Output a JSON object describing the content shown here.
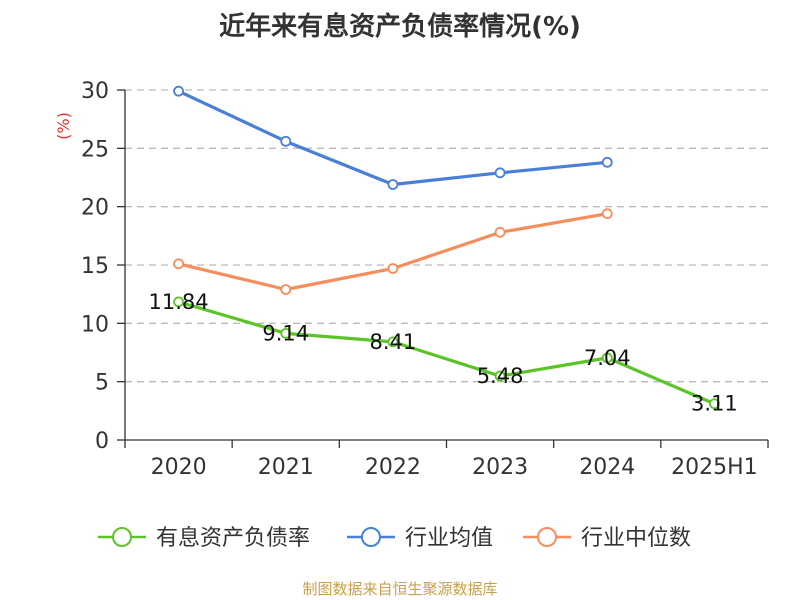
{
  "source_text": "制图数据来自恒生聚源数据库",
  "chart_data": {
    "type": "line",
    "title": "近年来有息资产负债率情况(%)",
    "ylabel": "(%)",
    "xlabel": "",
    "categories": [
      "2020",
      "2021",
      "2022",
      "2023",
      "2024",
      "2025H1"
    ],
    "ylim": [
      0,
      30
    ],
    "yticks": [
      0,
      5,
      10,
      15,
      20,
      25,
      30
    ],
    "grid": true,
    "legend_position": "bottom",
    "series": [
      {
        "name": "有息资产负债率",
        "color": "#5cc428",
        "values": [
          11.84,
          9.14,
          8.41,
          5.48,
          7.04,
          3.11
        ],
        "labels": [
          "11.84",
          "9.14",
          "8.41",
          "5.48",
          "7.04",
          "3.11"
        ]
      },
      {
        "name": "行业均值",
        "color": "#4a7fd8",
        "values": [
          29.9,
          25.6,
          21.9,
          22.9,
          23.8,
          null
        ],
        "labels": []
      },
      {
        "name": "行业中位数",
        "color": "#f58d5c",
        "values": [
          15.1,
          12.9,
          14.7,
          17.8,
          19.4,
          null
        ],
        "labels": []
      }
    ]
  }
}
